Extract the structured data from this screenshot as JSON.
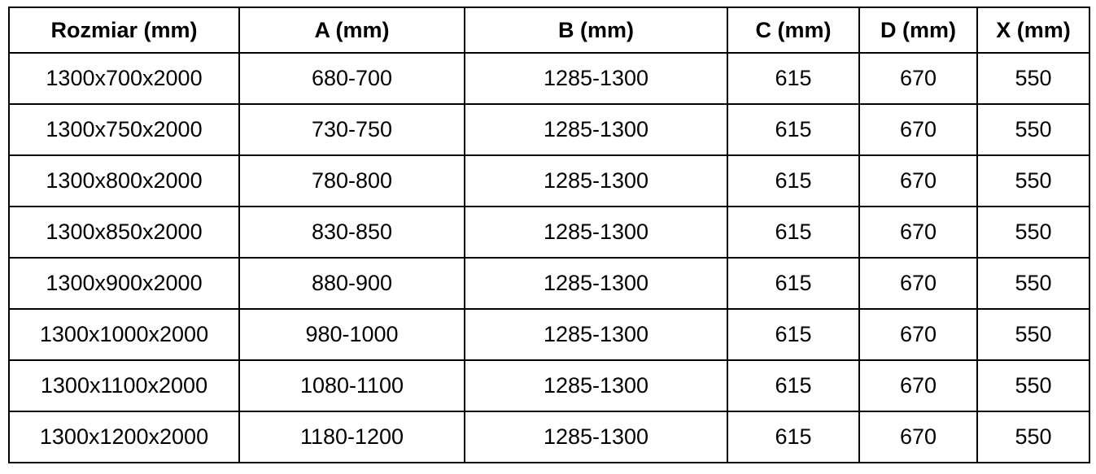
{
  "table": {
    "headers": [
      "Rozmiar (mm)",
      "A (mm)",
      "B (mm)",
      "C (mm)",
      "D (mm)",
      "X (mm)"
    ],
    "rows": [
      [
        "1300x700x2000",
        "680-700",
        "1285-1300",
        "615",
        "670",
        "550"
      ],
      [
        "1300x750x2000",
        "730-750",
        "1285-1300",
        "615",
        "670",
        "550"
      ],
      [
        "1300x800x2000",
        "780-800",
        "1285-1300",
        "615",
        "670",
        "550"
      ],
      [
        "1300x850x2000",
        "830-850",
        "1285-1300",
        "615",
        "670",
        "550"
      ],
      [
        "1300x900x2000",
        "880-900",
        "1285-1300",
        "615",
        "670",
        "550"
      ],
      [
        "1300x1000x2000",
        "980-1000",
        "1285-1300",
        "615",
        "670",
        "550"
      ],
      [
        "1300x1100x2000",
        "1080-1100",
        "1285-1300",
        "615",
        "670",
        "550"
      ],
      [
        "1300x1200x2000",
        "1180-1200",
        "1285-1300",
        "615",
        "670",
        "550"
      ]
    ],
    "colors": {
      "border": "#000000",
      "text": "#000000",
      "background": "#ffffff"
    }
  },
  "chart_data": {
    "type": "table",
    "title": "",
    "columns": [
      "Rozmiar (mm)",
      "A (mm)",
      "B (mm)",
      "C (mm)",
      "D (mm)",
      "X (mm)"
    ],
    "rows": [
      [
        "1300x700x2000",
        "680-700",
        "1285-1300",
        "615",
        "670",
        "550"
      ],
      [
        "1300x750x2000",
        "730-750",
        "1285-1300",
        "615",
        "670",
        "550"
      ],
      [
        "1300x800x2000",
        "780-800",
        "1285-1300",
        "615",
        "670",
        "550"
      ],
      [
        "1300x850x2000",
        "830-850",
        "1285-1300",
        "615",
        "670",
        "550"
      ],
      [
        "1300x900x2000",
        "880-900",
        "1285-1300",
        "615",
        "670",
        "550"
      ],
      [
        "1300x1000x2000",
        "980-1000",
        "1285-1300",
        "615",
        "670",
        "550"
      ],
      [
        "1300x1100x2000",
        "1080-1100",
        "1285-1300",
        "615",
        "670",
        "550"
      ],
      [
        "1300x1200x2000",
        "1180-1200",
        "1285-1300",
        "615",
        "670",
        "550"
      ]
    ]
  }
}
